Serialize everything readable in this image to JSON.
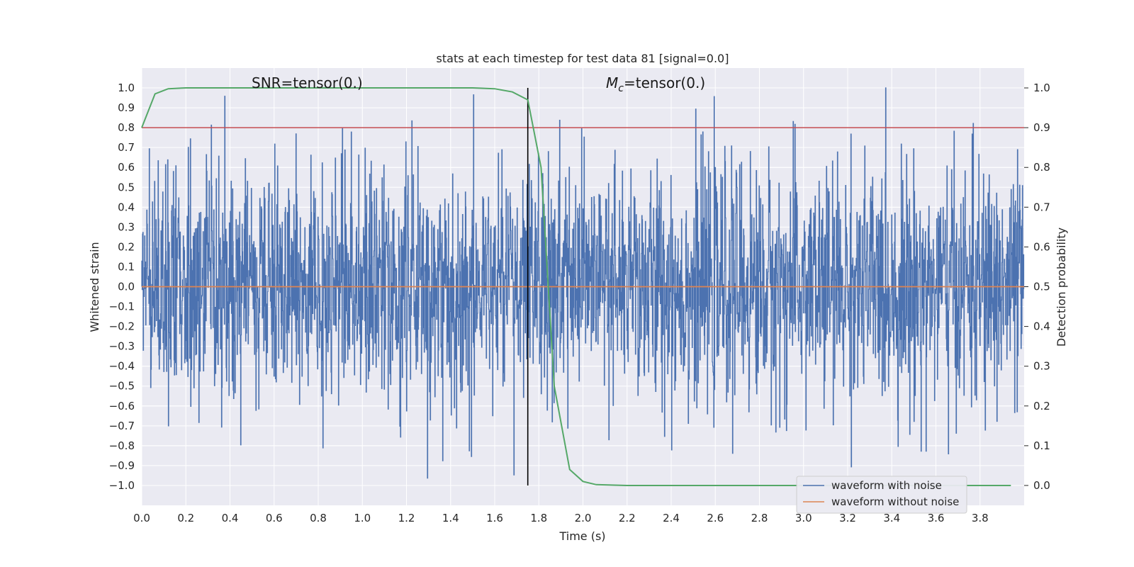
{
  "chart_data": {
    "type": "line",
    "title": "stats at each timestep for test data 81 [signal=0.0]",
    "xlabel": "Time (s)",
    "ylabel": "Whitened strain",
    "y2label": "Detection probability",
    "xlim": [
      0.0,
      4.0
    ],
    "ylim": [
      -1.1,
      1.1
    ],
    "y2lim": [
      -0.05,
      1.05
    ],
    "xticks": [
      "0.0",
      "0.2",
      "0.4",
      "0.6",
      "0.8",
      "1.0",
      "1.2",
      "1.4",
      "1.6",
      "1.8",
      "2.0",
      "2.2",
      "2.4",
      "2.6",
      "2.8",
      "3.0",
      "3.2",
      "3.4",
      "3.6",
      "3.8"
    ],
    "yticks": [
      "1.0",
      "0.9",
      "0.8",
      "0.7",
      "0.6",
      "0.5",
      "0.4",
      "0.3",
      "0.2",
      "0.1",
      "0.0",
      "−0.1",
      "−0.2",
      "−0.3",
      "−0.4",
      "−0.5",
      "−0.6",
      "−0.7",
      "−0.8",
      "−0.9",
      "−1.0"
    ],
    "y2ticks": [
      "1.0",
      "0.9",
      "0.8",
      "0.7",
      "0.6",
      "0.5",
      "0.4",
      "0.3",
      "0.2",
      "0.1",
      "0.0"
    ],
    "grid": true,
    "legend_position": "bottom-right",
    "annotations": {
      "snr": "SNR=tensor(0.)",
      "mc_symbol": "M",
      "mc_sub": "c",
      "mc_value": "=tensor(0.)"
    },
    "series": [
      {
        "name": "waveform with noise",
        "axis": "left",
        "color": "#4c72b0",
        "description_values": {
          "t_range": [
            0.0,
            4.0
          ],
          "typical_amplitude": 0.3,
          "max_value": 1.0,
          "min_value": -1.0
        }
      },
      {
        "name": "waveform without noise",
        "axis": "left",
        "color": "#dd8452",
        "x": [
          0.0,
          4.0
        ],
        "values": [
          0.0,
          0.0
        ]
      },
      {
        "axis": "right",
        "color": "#55a868",
        "x": [
          0.0,
          0.06,
          0.12,
          0.2,
          0.4,
          0.8,
          1.2,
          1.5,
          1.6,
          1.68,
          1.75,
          1.81,
          1.87,
          1.94,
          2.0,
          2.06,
          2.2,
          3.0,
          3.94
        ],
        "values": [
          0.9,
          0.985,
          0.998,
          1.0,
          1.0,
          1.0,
          1.0,
          1.0,
          0.998,
          0.99,
          0.97,
          0.8,
          0.25,
          0.04,
          0.01,
          0.002,
          0.0,
          0.0,
          0.0
        ]
      }
    ],
    "reference_lines": {
      "threshold_y2": 0.9,
      "threshold_color": "#c44e52",
      "vertical_x": 1.75,
      "vertical_color": "#000000"
    }
  }
}
